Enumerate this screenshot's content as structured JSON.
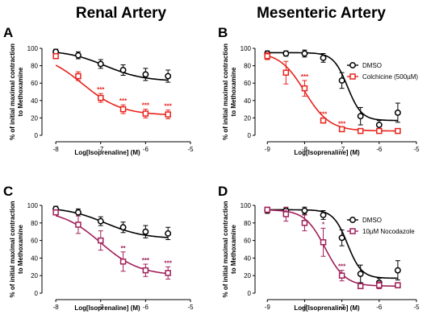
{
  "column_titles": [
    "Renal Artery",
    "Mesenteric Artery"
  ],
  "chart_data": [
    {
      "type": "scatter",
      "panel": "A",
      "xlabel": "Log[Isoprenaline] (M)",
      "ylabel": "% of initial maximal contraction to Methoxamine",
      "xlim": [
        -8.2,
        -5
      ],
      "ylim": [
        0,
        100
      ],
      "x_ticks": [
        -8,
        -7,
        -6,
        -5
      ],
      "y_ticks": [
        0,
        20,
        40,
        60,
        80,
        100
      ],
      "legend": [],
      "series": [
        {
          "color": "#000000",
          "marker": "circle",
          "x": [
            -8,
            -7.5,
            -7,
            -6.5,
            -6,
            -5.5
          ],
          "y": [
            96,
            92,
            82,
            75,
            70,
            68
          ],
          "err": [
            3,
            4,
            5,
            6,
            7,
            7
          ],
          "curve": {
            "bottom": 62,
            "top": 98,
            "logec50": -6.9,
            "hill": 1
          },
          "sig": [
            "",
            "",
            "",
            "",
            "",
            ""
          ]
        },
        {
          "color": "#e8231c",
          "marker": "square",
          "x": [
            -8,
            -7.5,
            -7,
            -6.5,
            -6,
            -5.5
          ],
          "y": [
            91,
            68,
            43,
            30,
            25,
            24
          ],
          "err": [
            3,
            5,
            5,
            5,
            5,
            5
          ],
          "curve": {
            "bottom": 23,
            "top": 95,
            "logec50": -7.4,
            "hill": 1
          },
          "sig": [
            "",
            "",
            "***",
            "***",
            "***",
            "***"
          ]
        }
      ]
    },
    {
      "type": "scatter",
      "panel": "B",
      "xlabel": "Log[Isoprenaline] (M)",
      "ylabel": "% of initial maximal contraction to Methoxamine",
      "xlim": [
        -9.2,
        -5
      ],
      "ylim": [
        0,
        100
      ],
      "x_ticks": [
        -9,
        -8,
        -7,
        -6,
        -5
      ],
      "y_ticks": [
        0,
        20,
        40,
        60,
        80,
        100
      ],
      "legend": [
        "DMSO",
        "Colchicine (500µM)"
      ],
      "series": [
        {
          "name": "DMSO",
          "color": "#000000",
          "marker": "circle",
          "x": [
            -9,
            -8.5,
            -8,
            -7.5,
            -7,
            -6.5,
            -6,
            -5.5
          ],
          "y": [
            94,
            94,
            94,
            89,
            63,
            22,
            12,
            26
          ],
          "err": [
            3,
            3,
            4,
            5,
            9,
            10,
            5,
            11
          ],
          "curve": {
            "bottom": 17,
            "top": 95,
            "logec50": -6.85,
            "hill": 2.3
          },
          "sig": [
            "",
            "",
            "",
            "",
            "",
            "",
            "",
            ""
          ]
        },
        {
          "name": "Colchicine (500µM)",
          "color": "#e8231c",
          "marker": "square",
          "x": [
            -9,
            -8.5,
            -8,
            -7.5,
            -7,
            -6.5,
            -6,
            -5.5
          ],
          "y": [
            91,
            72,
            54,
            17,
            7,
            5,
            5,
            5
          ],
          "err": [
            4,
            13,
            9,
            3,
            2,
            1,
            1,
            1
          ],
          "curve": {
            "bottom": 5,
            "top": 96,
            "logec50": -8.0,
            "hill": 1.3
          },
          "sig": [
            "",
            "",
            "***",
            "***",
            "***",
            "",
            "",
            ""
          ]
        }
      ]
    },
    {
      "type": "scatter",
      "panel": "C",
      "xlabel": "Log[Isoprenaline] (M)",
      "ylabel": "% of initial maximal contraction to Methoxamine",
      "xlim": [
        -8.2,
        -5
      ],
      "ylim": [
        0,
        100
      ],
      "x_ticks": [
        -8,
        -7,
        -6,
        -5
      ],
      "y_ticks": [
        0,
        20,
        40,
        60,
        80,
        100
      ],
      "legend": [],
      "series": [
        {
          "color": "#000000",
          "marker": "circle",
          "x": [
            -8,
            -7.5,
            -7,
            -6.5,
            -6,
            -5.5
          ],
          "y": [
            96,
            92,
            82,
            75,
            70,
            68
          ],
          "err": [
            3,
            4,
            5,
            6,
            7,
            7
          ],
          "curve": {
            "bottom": 62,
            "top": 98,
            "logec50": -6.9,
            "hill": 1
          },
          "sig": [
            "",
            "",
            "",
            "",
            "",
            ""
          ]
        },
        {
          "color": "#a0205a",
          "marker": "square",
          "x": [
            -8,
            -7.5,
            -7,
            -6.5,
            -6,
            -5.5
          ],
          "y": [
            92,
            78,
            60,
            36,
            26,
            23
          ],
          "err": [
            3,
            10,
            11,
            11,
            7,
            7
          ],
          "curve": {
            "bottom": 20,
            "top": 95,
            "logec50": -7.0,
            "hill": 1
          },
          "sig": [
            "",
            "",
            "",
            "**",
            "***",
            "***"
          ]
        }
      ]
    },
    {
      "type": "scatter",
      "panel": "D",
      "xlabel": "Log[Isoprenaline] (M)",
      "ylabel": "% of initial maximal contraction to Methoxamine",
      "xlim": [
        -9.2,
        -5
      ],
      "ylim": [
        0,
        100
      ],
      "x_ticks": [
        -9,
        -8,
        -7,
        -6,
        -5
      ],
      "y_ticks": [
        0,
        20,
        40,
        60,
        80,
        100
      ],
      "legend": [
        "DMSO",
        "10µM Nocodazole"
      ],
      "series": [
        {
          "name": "DMSO",
          "color": "#000000",
          "marker": "circle",
          "x": [
            -9,
            -8.5,
            -8,
            -7.5,
            -7,
            -6.5,
            -6,
            -5.5
          ],
          "y": [
            94,
            94,
            94,
            89,
            63,
            22,
            12,
            26
          ],
          "err": [
            3,
            3,
            4,
            5,
            9,
            10,
            5,
            11
          ],
          "curve": {
            "bottom": 17,
            "top": 95,
            "logec50": -6.85,
            "hill": 2.3
          },
          "sig": [
            "",
            "",
            "",
            "",
            "",
            "",
            "",
            ""
          ]
        },
        {
          "name": "10µM Nocodazole",
          "color": "#a0205a",
          "marker": "square",
          "x": [
            -9,
            -8.5,
            -8,
            -7.5,
            -7,
            -6.5,
            -6,
            -5.5
          ],
          "y": [
            95,
            90,
            80,
            58,
            20,
            8,
            9,
            9
          ],
          "err": [
            3,
            8,
            9,
            16,
            6,
            3,
            4,
            3
          ],
          "curve": {
            "bottom": 8,
            "top": 95,
            "logec50": -7.45,
            "hill": 1.6
          },
          "sig": [
            "",
            "",
            "",
            "*",
            "***",
            "",
            "",
            ""
          ]
        }
      ]
    }
  ]
}
